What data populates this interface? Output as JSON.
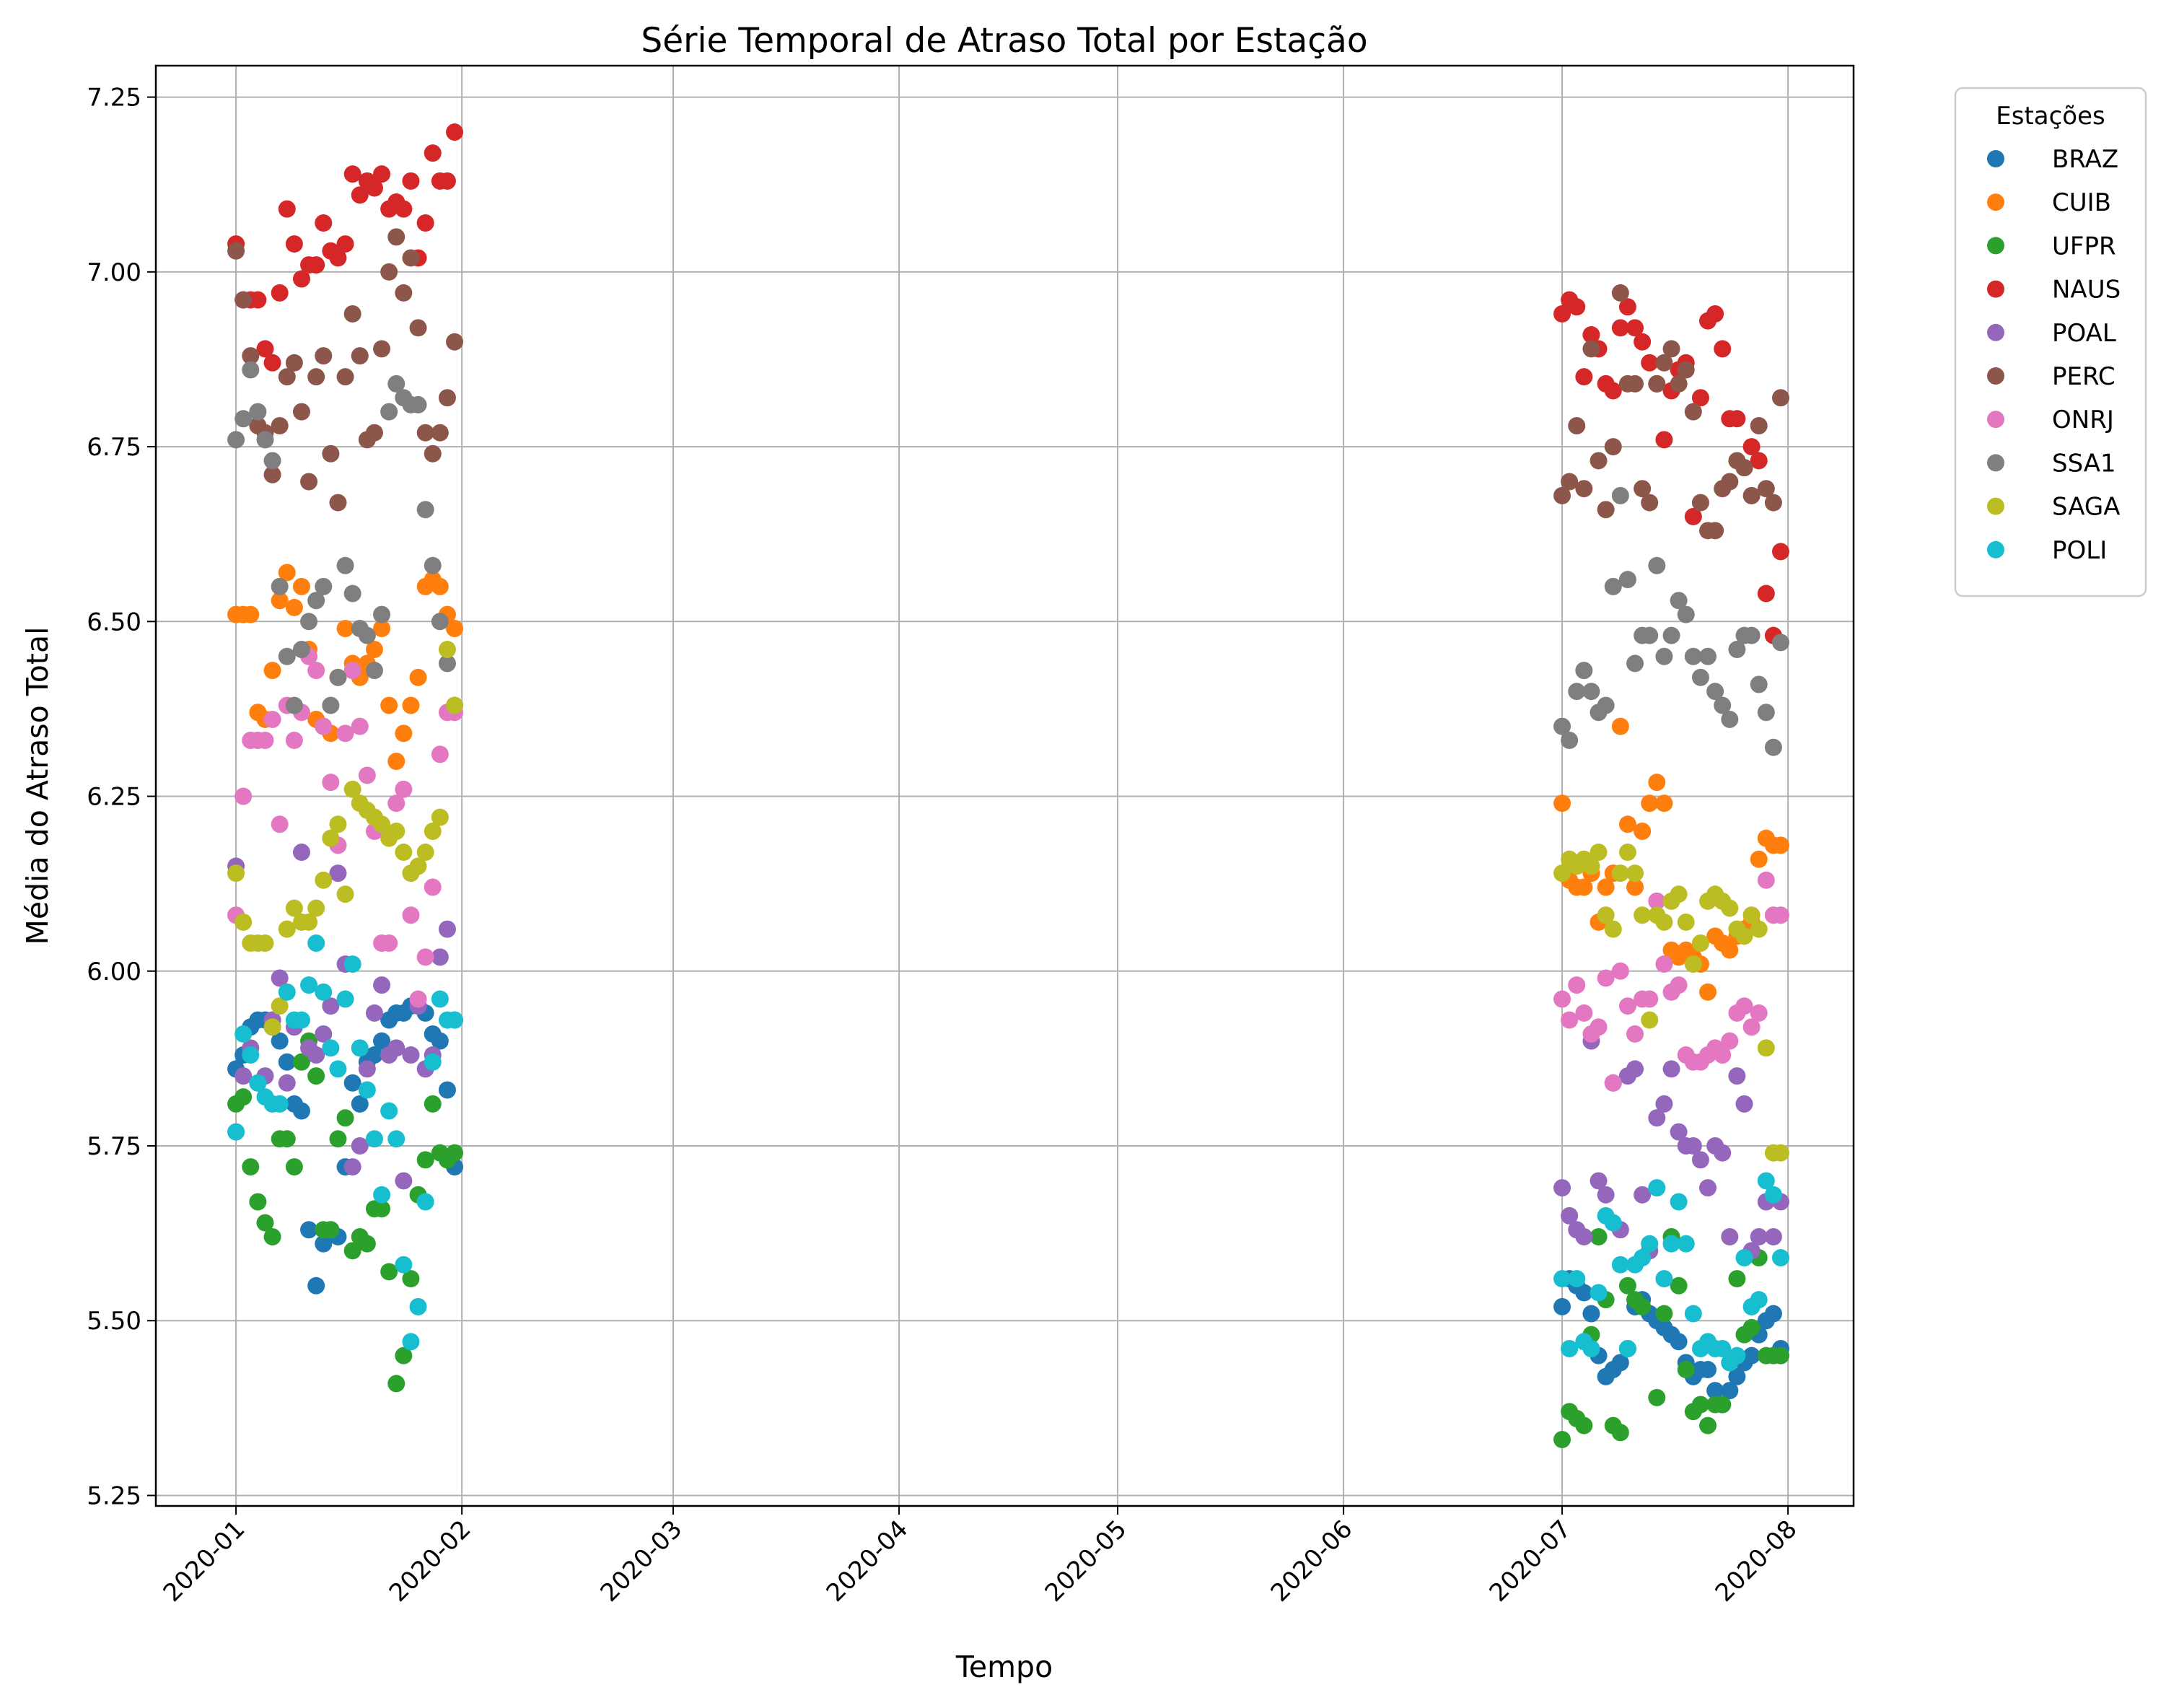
{
  "chart_data": {
    "type": "scatter",
    "title": "Série Temporal de Atraso Total por Estação",
    "xlabel": "Tempo",
    "ylabel": "Média do Atraso Total",
    "x_axis_type": "date",
    "xlim": [
      "2019-12-21",
      "2020-08-10"
    ],
    "ylim": [
      5.235,
      7.295
    ],
    "x_ticks": [
      "2020-01",
      "2020-02",
      "2020-03",
      "2020-04",
      "2020-05",
      "2020-06",
      "2020-07",
      "2020-08"
    ],
    "x_tick_dates": [
      "2020-01-01",
      "2020-02-01",
      "2020-03-01",
      "2020-04-01",
      "2020-05-01",
      "2020-06-01",
      "2020-07-01",
      "2020-08-01"
    ],
    "y_ticks": [
      5.25,
      5.5,
      5.75,
      6.0,
      6.25,
      6.5,
      6.75,
      7.0,
      7.25
    ],
    "y_tick_labels": [
      "5.25",
      "5.50",
      "5.75",
      "6.00",
      "6.25",
      "6.50",
      "6.75",
      "7.00",
      "7.25"
    ],
    "grid": true,
    "legend": {
      "title": "Estações",
      "placement": "outside-top-right"
    },
    "note": "Each station has one point per day for 2020-01-01..2020-01-31 and 2020-07-01..2020-07-31; values estimated from the plot.",
    "jan_dates_start": "2020-01-01",
    "jul_dates_start": "2020-07-01",
    "series": [
      {
        "name": "BRAZ",
        "color": "#1f77b4",
        "jan": [
          5.86,
          5.88,
          5.92,
          5.93,
          5.93,
          5.92,
          5.9,
          5.87,
          5.81,
          5.8,
          5.63,
          5.55,
          5.61,
          5.63,
          5.62,
          5.72,
          5.84,
          5.81,
          5.87,
          5.88,
          5.9,
          5.93,
          5.94,
          5.94,
          5.95,
          5.95,
          5.94,
          5.91,
          5.9,
          5.83,
          5.72
        ],
        "jul": [
          5.52,
          5.56,
          5.55,
          5.54,
          5.51,
          5.45,
          5.42,
          5.43,
          5.44,
          5.46,
          5.52,
          5.53,
          5.51,
          5.5,
          5.49,
          5.48,
          5.47,
          5.44,
          5.42,
          5.43,
          5.43,
          5.4,
          5.38,
          5.4,
          5.42,
          5.44,
          5.45,
          5.48,
          5.5,
          5.51,
          5.46
        ]
      },
      {
        "name": "CUIB",
        "color": "#ff7f0e",
        "jan": [
          6.51,
          6.51,
          6.51,
          6.37,
          6.36,
          6.43,
          6.53,
          6.57,
          6.52,
          6.55,
          6.46,
          6.36,
          6.35,
          6.34,
          6.42,
          6.49,
          6.44,
          6.42,
          6.44,
          6.46,
          6.49,
          6.38,
          6.3,
          6.34,
          6.38,
          6.42,
          6.55,
          6.56,
          6.55,
          6.51,
          6.49
        ],
        "jul": [
          6.24,
          6.13,
          6.12,
          6.12,
          6.14,
          6.07,
          6.12,
          6.14,
          6.35,
          6.21,
          6.12,
          6.2,
          6.24,
          6.27,
          6.24,
          6.03,
          6.02,
          6.03,
          6.02,
          6.01,
          5.97,
          6.05,
          6.04,
          6.03,
          6.05,
          6.06,
          6.07,
          6.16,
          6.19,
          6.18,
          6.18
        ]
      },
      {
        "name": "UFPR",
        "color": "#2ca02c",
        "jan": [
          5.81,
          5.82,
          5.72,
          5.67,
          5.64,
          5.62,
          5.76,
          5.76,
          5.72,
          5.87,
          5.9,
          5.85,
          5.63,
          5.63,
          5.76,
          5.79,
          5.6,
          5.62,
          5.61,
          5.66,
          5.66,
          5.57,
          5.41,
          5.45,
          5.56,
          5.68,
          5.73,
          5.81,
          5.74,
          5.73,
          5.74
        ],
        "jul": [
          5.33,
          5.37,
          5.36,
          5.35,
          5.48,
          5.62,
          5.53,
          5.35,
          5.34,
          5.55,
          5.53,
          5.52,
          5.6,
          5.39,
          5.51,
          5.62,
          5.55,
          5.43,
          5.37,
          5.38,
          5.35,
          5.38,
          5.38,
          5.44,
          5.56,
          5.48,
          5.49,
          5.59,
          5.45,
          5.45,
          5.45
        ]
      },
      {
        "name": "NAUS",
        "color": "#d62728",
        "jan": [
          7.04,
          6.96,
          6.96,
          6.96,
          6.89,
          6.87,
          6.97,
          7.09,
          7.04,
          6.99,
          7.01,
          7.01,
          7.07,
          7.03,
          7.02,
          7.04,
          7.14,
          7.11,
          7.13,
          7.12,
          7.14,
          7.09,
          7.1,
          7.09,
          7.13,
          7.02,
          7.07,
          7.17,
          7.13,
          7.13,
          7.2
        ],
        "jul": [
          6.94,
          6.96,
          6.95,
          6.85,
          6.91,
          6.89,
          6.84,
          6.83,
          6.92,
          6.95,
          6.92,
          6.9,
          6.87,
          6.84,
          6.76,
          6.83,
          6.86,
          6.87,
          6.65,
          6.82,
          6.93,
          6.94,
          6.89,
          6.79,
          6.79,
          6.72,
          6.75,
          6.73,
          6.54,
          6.48,
          6.6
        ]
      },
      {
        "name": "POAL",
        "color": "#9467bd",
        "jan": [
          6.15,
          5.85,
          5.89,
          5.84,
          5.85,
          5.93,
          5.99,
          5.84,
          5.92,
          6.17,
          5.89,
          5.88,
          5.91,
          5.95,
          6.14,
          6.01,
          5.72,
          5.75,
          5.86,
          5.94,
          5.98,
          5.88,
          5.89,
          5.7,
          5.88,
          5.95,
          5.86,
          5.88,
          6.02,
          6.06,
          5.93
        ],
        "jul": [
          5.69,
          5.65,
          5.63,
          5.62,
          5.9,
          5.7,
          5.68,
          5.84,
          5.63,
          5.85,
          5.86,
          5.68,
          5.6,
          5.79,
          5.81,
          5.86,
          5.77,
          5.75,
          5.75,
          5.73,
          5.69,
          5.75,
          5.74,
          5.62,
          5.85,
          5.81,
          5.6,
          5.62,
          5.67,
          5.62,
          5.67
        ]
      },
      {
        "name": "PERC",
        "color": "#8c564b",
        "jan": [
          7.03,
          6.96,
          6.88,
          6.78,
          6.77,
          6.71,
          6.78,
          6.85,
          6.87,
          6.8,
          6.7,
          6.85,
          6.88,
          6.74,
          6.67,
          6.85,
          6.94,
          6.88,
          6.76,
          6.77,
          6.89,
          7.0,
          7.05,
          6.97,
          7.02,
          6.92,
          6.77,
          6.74,
          6.77,
          6.82,
          6.9
        ],
        "jul": [
          6.68,
          6.7,
          6.78,
          6.69,
          6.89,
          6.73,
          6.66,
          6.75,
          6.97,
          6.84,
          6.84,
          6.69,
          6.67,
          6.84,
          6.87,
          6.89,
          6.84,
          6.86,
          6.8,
          6.67,
          6.63,
          6.63,
          6.69,
          6.7,
          6.73,
          6.72,
          6.68,
          6.78,
          6.69,
          6.67,
          6.82
        ]
      },
      {
        "name": "ONRJ",
        "color": "#e377c2",
        "jan": [
          6.08,
          6.25,
          6.33,
          6.33,
          6.33,
          6.36,
          6.21,
          6.38,
          6.33,
          6.37,
          6.45,
          6.43,
          6.35,
          6.27,
          6.18,
          6.34,
          6.43,
          6.35,
          6.28,
          6.2,
          6.04,
          6.04,
          6.24,
          6.26,
          6.08,
          5.96,
          6.02,
          6.12,
          6.31,
          6.37,
          6.37
        ],
        "jul": [
          5.96,
          5.93,
          5.98,
          5.94,
          5.91,
          5.92,
          5.99,
          5.84,
          6.0,
          5.95,
          5.91,
          5.96,
          5.96,
          6.1,
          6.01,
          5.97,
          5.98,
          5.88,
          5.87,
          5.87,
          5.88,
          5.89,
          5.88,
          5.9,
          5.94,
          5.95,
          5.92,
          5.94,
          6.13,
          6.08,
          6.08
        ]
      },
      {
        "name": "SSA1",
        "color": "#7f7f7f",
        "jan": [
          6.76,
          6.79,
          6.86,
          6.8,
          6.76,
          6.73,
          6.55,
          6.45,
          6.38,
          6.46,
          6.5,
          6.53,
          6.55,
          6.38,
          6.42,
          6.58,
          6.54,
          6.49,
          6.48,
          6.43,
          6.51,
          6.8,
          6.84,
          6.82,
          6.81,
          6.81,
          6.66,
          6.58,
          6.5,
          6.44,
          6.38
        ],
        "jul": [
          6.35,
          6.33,
          6.4,
          6.43,
          6.4,
          6.37,
          6.38,
          6.55,
          6.68,
          6.56,
          6.44,
          6.48,
          6.48,
          6.58,
          6.45,
          6.48,
          6.53,
          6.51,
          6.45,
          6.42,
          6.45,
          6.4,
          6.38,
          6.36,
          6.46,
          6.48,
          6.48,
          6.41,
          6.37,
          6.32,
          6.47
        ]
      },
      {
        "name": "SAGA",
        "color": "#bcbd22",
        "jan": [
          6.14,
          6.07,
          6.04,
          6.04,
          6.04,
          5.92,
          5.95,
          6.06,
          6.09,
          6.07,
          6.07,
          6.09,
          6.13,
          6.19,
          6.21,
          6.11,
          6.26,
          6.24,
          6.23,
          6.22,
          6.21,
          6.19,
          6.2,
          6.17,
          6.14,
          6.15,
          6.17,
          6.2,
          6.22,
          6.46,
          6.38
        ],
        "jul": [
          6.14,
          6.16,
          6.15,
          6.16,
          6.15,
          6.17,
          6.08,
          6.06,
          6.14,
          6.17,
          6.14,
          6.08,
          5.93,
          6.08,
          6.07,
          6.1,
          6.11,
          6.07,
          6.01,
          6.04,
          6.1,
          6.11,
          6.1,
          6.09,
          6.06,
          6.05,
          6.08,
          6.06,
          5.89,
          5.74,
          5.74
        ]
      },
      {
        "name": "POLI",
        "color": "#17becf",
        "jan": [
          5.77,
          5.91,
          5.88,
          5.84,
          5.82,
          5.81,
          5.81,
          5.97,
          5.93,
          5.93,
          5.98,
          6.04,
          5.97,
          5.89,
          5.86,
          5.96,
          6.01,
          5.89,
          5.83,
          5.76,
          5.68,
          5.8,
          5.76,
          5.58,
          5.47,
          5.52,
          5.67,
          5.87,
          5.96,
          5.93,
          5.93
        ],
        "jul": [
          5.56,
          5.46,
          5.56,
          5.47,
          5.46,
          5.54,
          5.65,
          5.64,
          5.58,
          5.46,
          5.58,
          5.59,
          5.61,
          5.69,
          5.56,
          5.61,
          5.67,
          5.61,
          5.51,
          5.46,
          5.47,
          5.46,
          5.46,
          5.44,
          5.45,
          5.59,
          5.52,
          5.53,
          5.7,
          5.68,
          5.59
        ]
      }
    ]
  }
}
